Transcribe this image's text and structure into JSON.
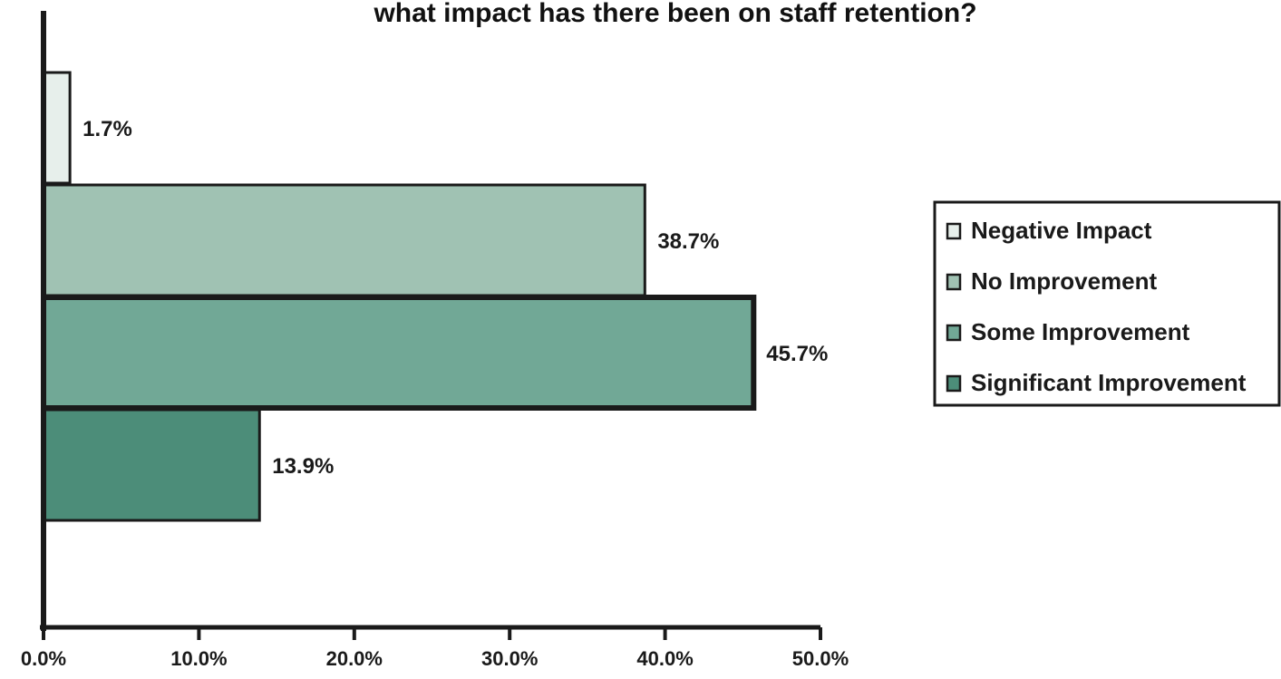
{
  "chart_data": {
    "type": "bar",
    "orientation": "horizontal",
    "title": "what impact has there been on staff retention?",
    "categories": [
      "Negative Impact",
      "No Improvement",
      "Some Improvement",
      "Significant Improvement"
    ],
    "values": [
      1.7,
      38.7,
      45.7,
      13.9
    ],
    "value_labels": [
      "1.7%",
      "38.7%",
      "45.7%",
      "13.9%"
    ],
    "colors": [
      "#e7efeb",
      "#a0c2b3",
      "#71a896",
      "#4c8d79"
    ],
    "xlim": [
      0,
      50
    ],
    "xticks": [
      0,
      10,
      20,
      30,
      40,
      50
    ],
    "xtick_labels": [
      "0.0%",
      "10.0%",
      "20.0%",
      "30.0%",
      "40.0%",
      "50.0%"
    ],
    "xlabel": "",
    "ylabel": "",
    "grid": false,
    "legend": {
      "position": "right",
      "entries": [
        "Negative Impact",
        "No Improvement",
        "Some Improvement",
        "Significant Improvement"
      ]
    }
  }
}
